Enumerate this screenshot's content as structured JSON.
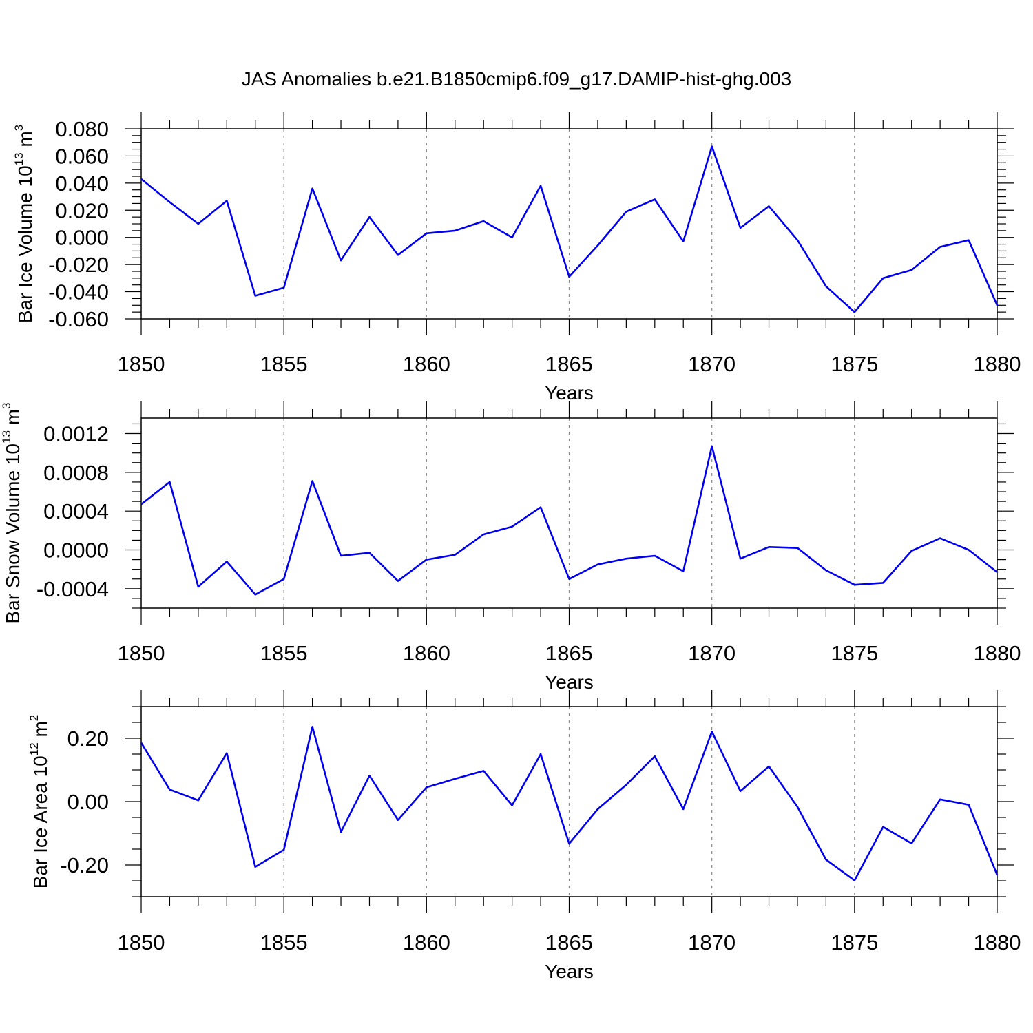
{
  "title": "JAS Anomalies b.e21.B1850cmip6.f09_g17.DAMIP-hist-ghg.003",
  "colors": {
    "line": "#0000ee",
    "axis": "#000000",
    "grid": "#888888"
  },
  "chart_data": [
    {
      "type": "line",
      "ylabel": "Bar Ice Volume 10",
      "ylabel_exp": "13",
      "ylabel_unit": " m",
      "ylabel_unit_exp": "3",
      "xlabel": "Years",
      "xlim": [
        1850,
        1880
      ],
      "ylim": [
        -0.06,
        0.08
      ],
      "yticks": [
        -0.06,
        -0.04,
        -0.02,
        0.0,
        0.02,
        0.04,
        0.06,
        0.08
      ],
      "ytick_labels": [
        "-0.060",
        "-0.040",
        "-0.020",
        "0.000",
        "0.020",
        "0.040",
        "0.060",
        "0.080"
      ],
      "yminor_step": 0.005,
      "xticks": [
        1850,
        1855,
        1860,
        1865,
        1870,
        1875,
        1880
      ],
      "xtick_labels": [
        "1850",
        "1855",
        "1860",
        "1865",
        "1870",
        "1875",
        "1880"
      ],
      "grid_x": [
        1855,
        1860,
        1865,
        1870,
        1875
      ],
      "x": [
        1850,
        1851,
        1852,
        1853,
        1854,
        1855,
        1856,
        1857,
        1858,
        1859,
        1860,
        1861,
        1862,
        1863,
        1864,
        1865,
        1866,
        1867,
        1868,
        1869,
        1870,
        1871,
        1872,
        1873,
        1874,
        1875,
        1876,
        1877,
        1878,
        1879,
        1880
      ],
      "values": [
        0.043,
        0.026,
        0.01,
        0.027,
        -0.043,
        -0.037,
        0.036,
        -0.017,
        0.015,
        -0.013,
        0.003,
        0.005,
        0.012,
        0.0,
        0.038,
        -0.029,
        -0.006,
        0.019,
        0.028,
        -0.003,
        0.067,
        0.007,
        0.023,
        -0.002,
        -0.036,
        -0.055,
        -0.03,
        -0.024,
        -0.007,
        -0.002,
        -0.05
      ]
    },
    {
      "type": "line",
      "ylabel": "Bar Snow Volume 10",
      "ylabel_exp": "13",
      "ylabel_unit": " m",
      "ylabel_unit_exp": "3",
      "xlabel": "Years",
      "xlim": [
        1850,
        1880
      ],
      "ylim": [
        -0.0006,
        0.00136
      ],
      "yticks": [
        -0.0004,
        0.0,
        0.0004,
        0.0008,
        0.0012
      ],
      "ytick_labels": [
        "-0.0004",
        "0.0000",
        "0.0004",
        "0.0008",
        "0.0012"
      ],
      "yminor_step": 0.0001,
      "xticks": [
        1850,
        1855,
        1860,
        1865,
        1870,
        1875,
        1880
      ],
      "xtick_labels": [
        "1850",
        "1855",
        "1860",
        "1865",
        "1870",
        "1875",
        "1880"
      ],
      "grid_x": [
        1855,
        1860,
        1865,
        1870,
        1875
      ],
      "x": [
        1850,
        1851,
        1852,
        1853,
        1854,
        1855,
        1856,
        1857,
        1858,
        1859,
        1860,
        1861,
        1862,
        1863,
        1864,
        1865,
        1866,
        1867,
        1868,
        1869,
        1870,
        1871,
        1872,
        1873,
        1874,
        1875,
        1876,
        1877,
        1878,
        1879,
        1880
      ],
      "values": [
        0.00047,
        0.0007,
        -0.00038,
        -0.00012,
        -0.00046,
        -0.0003,
        0.00071,
        -6e-05,
        -3e-05,
        -0.00032,
        -0.0001,
        -5e-05,
        0.00016,
        0.00024,
        0.00044,
        -0.0003,
        -0.00015,
        -9e-05,
        -6e-05,
        -0.00022,
        0.00107,
        -9e-05,
        3e-05,
        2e-05,
        -0.00021,
        -0.00036,
        -0.00034,
        -1e-05,
        0.00012,
        0.0,
        -0.00023
      ]
    },
    {
      "type": "line",
      "ylabel": "Bar Ice Area 10",
      "ylabel_exp": "12",
      "ylabel_unit": " m",
      "ylabel_unit_exp": "2",
      "xlabel": "Years",
      "xlim": [
        1850,
        1880
      ],
      "ylim": [
        -0.3,
        0.3
      ],
      "yticks": [
        -0.2,
        0.0,
        0.2
      ],
      "ytick_labels": [
        "-0.20",
        "0.00",
        "0.20"
      ],
      "yminor_step": 0.05,
      "xticks": [
        1850,
        1855,
        1860,
        1865,
        1870,
        1875,
        1880
      ],
      "xtick_labels": [
        "1850",
        "1855",
        "1860",
        "1865",
        "1870",
        "1875",
        "1880"
      ],
      "grid_x": [
        1855,
        1860,
        1865,
        1870,
        1875
      ],
      "x": [
        1850,
        1851,
        1852,
        1853,
        1854,
        1855,
        1856,
        1857,
        1858,
        1859,
        1860,
        1861,
        1862,
        1863,
        1864,
        1865,
        1866,
        1867,
        1868,
        1869,
        1870,
        1871,
        1872,
        1873,
        1874,
        1875,
        1876,
        1877,
        1878,
        1879,
        1880
      ],
      "values": [
        0.186,
        0.038,
        0.004,
        0.153,
        -0.206,
        -0.152,
        0.236,
        -0.096,
        0.082,
        -0.058,
        0.045,
        0.072,
        0.097,
        -0.012,
        0.15,
        -0.133,
        -0.024,
        0.053,
        0.143,
        -0.024,
        0.221,
        0.033,
        0.111,
        -0.017,
        -0.183,
        -0.249,
        -0.08,
        -0.132,
        0.007,
        -0.01,
        -0.232
      ]
    }
  ]
}
